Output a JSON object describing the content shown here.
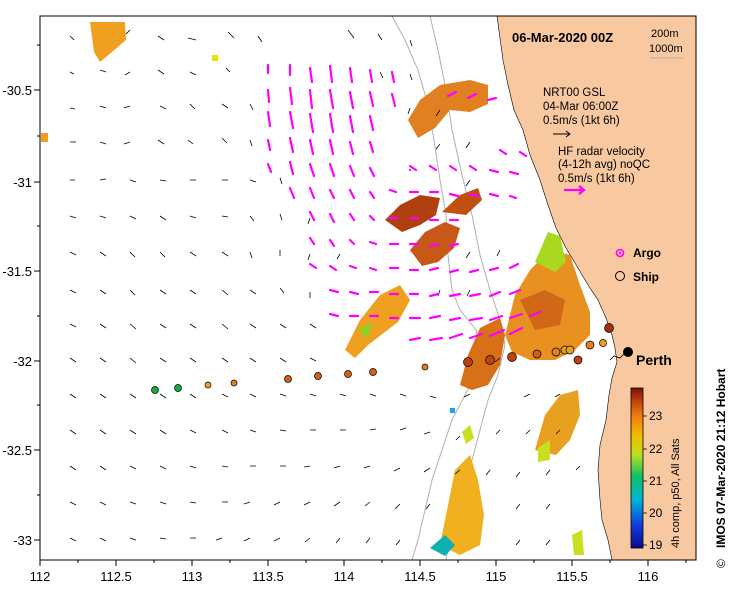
{
  "title": "06-Mar-2020 00Z",
  "depth_contours": [
    "200m",
    "1000m"
  ],
  "legend": {
    "gsl_line1": "NRT00 GSL",
    "gsl_line2": "04-Mar 06:00Z",
    "gsl_scale": "0.5m/s (1kt 6h)",
    "hf_line1": "HF radar velocity",
    "hf_line2": "(4-12h avg) noQC",
    "hf_scale": "0.5m/s (1kt 6h)",
    "argo": "Argo",
    "ship": "Ship"
  },
  "place": "Perth",
  "x_ticks": [
    "112",
    "112.5",
    "113",
    "113.5",
    "114",
    "114.5",
    "115",
    "115.5",
    "116"
  ],
  "y_ticks": [
    "-30.5",
    "-31",
    "-31.5",
    "-32",
    "-32.5",
    "-33"
  ],
  "colorbar": {
    "ticks": [
      "23",
      "22",
      "21",
      "20",
      "19"
    ],
    "label": "4h comp, p50, All Sats"
  },
  "credit": "IMOS 07-Mar-2020 21:12 Hobart",
  "copyright": "©",
  "colors": {
    "land": "#f8c8a0",
    "hf_vectors": "#ff00ff",
    "gsl_vectors": "#000000",
    "contours": "#b0b0b0"
  }
}
